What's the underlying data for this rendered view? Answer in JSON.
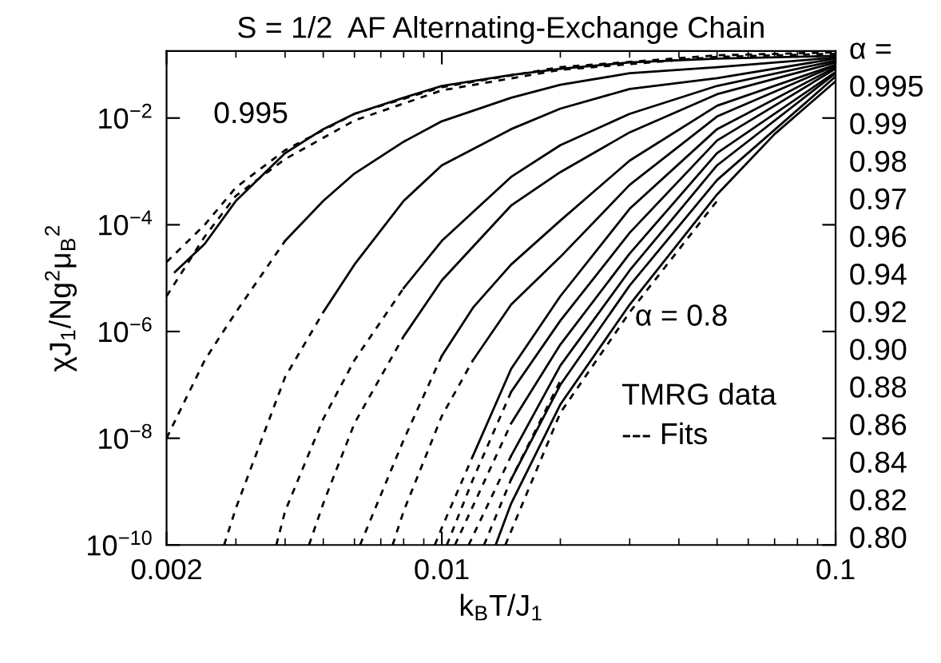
{
  "chart_data": {
    "type": "line",
    "title": "S = 1/2  AF Alternating-Exchange Chain",
    "xlabel": "k$_{B}$T/J$_{1}$",
    "ylabel": "χJ$_{1}$/Ng$^{2}$μ$_{B}$$^{2}$",
    "log": "xy",
    "xlim": [
      0.002,
      0.1
    ],
    "ylim": [
      1e-10,
      0.18
    ],
    "xticks": [
      0.002,
      0.01,
      0.1
    ],
    "yticks": [
      {
        "value": 1e-10,
        "label": "10$^{−10}$"
      },
      {
        "value": 1e-08,
        "label": "10$^{−8}$"
      },
      {
        "value": 1e-06,
        "label": "10$^{−6}$"
      },
      {
        "value": 0.0001,
        "label": "10$^{−4}$"
      },
      {
        "value": 0.01,
        "label": "10$^{−2}$"
      }
    ],
    "annotations": [
      "0.995",
      "α = 0.8",
      "TMRG data",
      "--- Fits",
      "α =",
      "0.995",
      "0.99",
      "0.98",
      "0.97",
      "0.96",
      "0.94",
      "0.92",
      "0.90",
      "0.88",
      "0.86",
      "0.84",
      "0.82",
      "0.80"
    ],
    "series": [
      {
        "color": "#000000",
        "line_style": "solid",
        "x": [
          0.0021,
          0.0025,
          0.003,
          0.004,
          0.005,
          0.006,
          0.008,
          0.01,
          0.015,
          0.02,
          0.03,
          0.05,
          0.1
        ],
        "values": [
          1.3e-05,
          4.4e-05,
          0.00028,
          0.0022,
          0.0062,
          0.012,
          0.024,
          0.04,
          0.064,
          0.084,
          0.11,
          0.13,
          0.146
        ]
      },
      {
        "color": "#000000",
        "line_style": "dashed",
        "x": [
          0.002,
          0.0025,
          0.003,
          0.004,
          0.006,
          0.01,
          0.02,
          0.05,
          0.1
        ],
        "values": [
          4.6e-06,
          6e-05,
          0.00035,
          0.0017,
          0.009,
          0.033,
          0.08,
          0.14,
          0.16
        ]
      },
      {
        "color": "#000000",
        "line_style": "dashed",
        "x": [
          0.002,
          0.0025,
          0.003,
          0.004,
          0.006,
          0.01,
          0.02,
          0.05,
          0.1
        ],
        "values": [
          2e-05,
          0.0001,
          0.0005,
          0.0025,
          0.012,
          0.038,
          0.09,
          0.15,
          0.17
        ]
      },
      {
        "color": "#000000",
        "line_style": "solid",
        "x": [
          0.004,
          0.005,
          0.006,
          0.008,
          0.01,
          0.015,
          0.02,
          0.03,
          0.05,
          0.1
        ],
        "values": [
          5e-05,
          0.00028,
          0.00091,
          0.0036,
          0.0087,
          0.024,
          0.042,
          0.069,
          0.09,
          0.136
        ]
      },
      {
        "color": "#000000",
        "line_style": "dashed",
        "x": [
          0.002,
          0.0025,
          0.003,
          0.004
        ],
        "values": [
          1e-08,
          2.9e-07,
          2.3e-06,
          5e-05
        ]
      },
      {
        "color": "#000000",
        "line_style": "solid",
        "x": [
          0.005,
          0.006,
          0.008,
          0.01,
          0.015,
          0.02,
          0.03,
          0.05,
          0.1
        ],
        "values": [
          2.3e-06,
          1.8e-05,
          0.00028,
          0.0013,
          0.0062,
          0.015,
          0.035,
          0.056,
          0.13
        ]
      },
      {
        "color": "#000000",
        "line_style": "dashed",
        "x": [
          0.0028,
          0.003,
          0.004,
          0.005
        ],
        "values": [
          1e-10,
          4.9e-10,
          1.4e-07,
          2.3e-06
        ]
      },
      {
        "color": "#000000",
        "line_style": "solid",
        "x": [
          0.008,
          0.01,
          0.015,
          0.02,
          0.03,
          0.05,
          0.1
        ],
        "values": [
          6.5e-06,
          5e-05,
          0.00079,
          0.0031,
          0.012,
          0.04,
          0.119
        ]
      },
      {
        "color": "#000000",
        "line_style": "dashed",
        "x": [
          0.0038,
          0.004,
          0.005,
          0.006,
          0.008
        ],
        "values": [
          1e-10,
          4.3e-10,
          2.3e-08,
          2.9e-07,
          6.5e-06
        ]
      },
      {
        "color": "#000000",
        "line_style": "solid",
        "x": [
          0.008,
          0.01,
          0.015,
          0.02,
          0.03,
          0.05,
          0.1
        ],
        "values": [
          8.1e-07,
          9.1e-06,
          0.00023,
          0.00097,
          0.0054,
          0.028,
          0.11
        ]
      },
      {
        "color": "#000000",
        "line_style": "dashed",
        "x": [
          0.0046,
          0.005,
          0.006,
          0.008
        ],
        "values": [
          1e-10,
          6e-10,
          1.9e-08,
          8.1e-07
        ]
      },
      {
        "color": "#000000",
        "line_style": "solid",
        "x": [
          0.01,
          0.012,
          0.015,
          0.02,
          0.03,
          0.05,
          0.1
        ],
        "values": [
          3.5e-07,
          2.8e-06,
          1.8e-05,
          0.00012,
          0.0016,
          0.017,
          0.1
        ]
      },
      {
        "color": "#000000",
        "line_style": "dashed",
        "x": [
          0.0062,
          0.008,
          0.01
        ],
        "values": [
          1e-10,
          9.3e-09,
          3.5e-07
        ]
      },
      {
        "color": "#000000",
        "line_style": "solid",
        "x": [
          0.012,
          0.015,
          0.02,
          0.03,
          0.05,
          0.1
        ],
        "values": [
          2.9e-07,
          3.2e-06,
          2.5e-05,
          0.00056,
          0.0107,
          0.097
        ]
      },
      {
        "color": "#000000",
        "line_style": "dashed",
        "x": [
          0.0075,
          0.008,
          0.01,
          0.012
        ],
        "values": [
          1e-10,
          4.3e-10,
          2.6e-08,
          2.9e-07
        ]
      },
      {
        "color": "#000000",
        "line_style": "solid",
        "x": [
          0.012,
          0.015,
          0.02,
          0.03,
          0.05,
          0.1
        ],
        "values": [
          4.7e-09,
          2e-07,
          4.6e-06,
          0.0002,
          0.0062,
          0.09
        ]
      },
      {
        "color": "#000000",
        "line_style": "dashed",
        "x": [
          0.0096,
          0.01,
          0.012
        ],
        "values": [
          1e-10,
          2.1e-10,
          4.7e-09
        ]
      },
      {
        "color": "#000000",
        "line_style": "solid",
        "x": [
          0.015,
          0.02,
          0.03,
          0.05,
          0.1
        ],
        "values": [
          7.4e-08,
          1.6e-06,
          7.1e-05,
          0.0038,
          0.084
        ]
      },
      {
        "color": "#000000",
        "line_style": "dashed",
        "x": [
          0.0103,
          0.012,
          0.015
        ],
        "values": [
          1e-10,
          1.7e-09,
          7.4e-08
        ]
      },
      {
        "color": "#000000",
        "line_style": "solid",
        "x": [
          0.015,
          0.02,
          0.03,
          0.05,
          0.1
        ],
        "values": [
          1.9e-08,
          5.7e-07,
          2.9e-05,
          0.0022,
          0.073
        ]
      },
      {
        "color": "#000000",
        "line_style": "dashed",
        "x": [
          0.0108,
          0.015
        ],
        "values": [
          1e-10,
          1.9e-08
        ]
      },
      {
        "color": "#000000",
        "line_style": "solid",
        "x": [
          0.015,
          0.02,
          0.03,
          0.05,
          0.1
        ],
        "values": [
          4.7e-09,
          2.3e-07,
          1.4e-05,
          0.0013,
          0.069
        ]
      },
      {
        "color": "#000000",
        "line_style": "dashed",
        "x": [
          0.0117,
          0.015
        ],
        "values": [
          1e-10,
          4.7e-09
        ]
      },
      {
        "color": "#000000",
        "line_style": "solid",
        "x": [
          0.015,
          0.02,
          0.03,
          0.05,
          0.1
        ],
        "values": [
          1.7e-09,
          1e-07,
          7.3e-06,
          0.00069,
          0.06
        ]
      },
      {
        "color": "#000000",
        "line_style": "dashed",
        "x": [
          0.0128,
          0.015,
          0.02
        ],
        "values": [
          1e-10,
          1.7e-09,
          1.2e-07
        ]
      },
      {
        "color": "#000000",
        "line_style": "solid",
        "x": [
          0.0137,
          0.015,
          0.02,
          0.03,
          0.05,
          0.07,
          0.1
        ],
        "values": [
          1e-10,
          6e-10,
          4.3e-08,
          3.2e-06,
          0.00037,
          0.005,
          0.049
        ]
      },
      {
        "color": "#000000",
        "line_style": "dashed",
        "x": [
          0.0145,
          0.02,
          0.03,
          0.05
        ],
        "values": [
          1e-10,
          3e-08,
          2.3e-06,
          0.00028
        ]
      }
    ]
  }
}
